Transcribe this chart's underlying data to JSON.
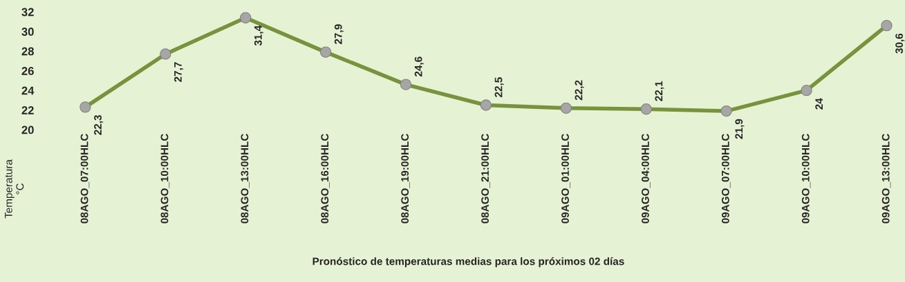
{
  "chart_data": {
    "type": "line",
    "xlabel": "Pronóstico de temperaturas medias para los próximos 02 días",
    "ylabel": "Temperatura\n°C",
    "categories": [
      "08AGO_07:00HLC",
      "08AGO_10:00HLC",
      "08AGO_13:00HLC",
      "08AGO_16:00HLC",
      "08AGO_19:00HLC",
      "08AGO_21:00HLC",
      "09AGO_01:00HLC",
      "09AGO_04:00HLC",
      "09AGO_07:00HLC",
      "09AGO_10:00HLC",
      "09AGO_13:00HLC"
    ],
    "series": [
      {
        "color": "#77933c",
        "values": [
          22.3,
          27.7,
          31.4,
          27.9,
          24.6,
          22.5,
          22.2,
          22.1,
          21.9,
          24,
          30.6
        ],
        "value_labels": [
          "22,3",
          "27,7",
          "31,4",
          "27,9",
          "24,6",
          "22,5",
          "22,2",
          "22,1",
          "21,9",
          "24",
          "30,6"
        ]
      }
    ],
    "ylim": [
      20,
      32
    ],
    "yticks": [
      20,
      22,
      24,
      26,
      28,
      30,
      32
    ],
    "marker": "circle",
    "line_style": "solid",
    "grid": false
  }
}
